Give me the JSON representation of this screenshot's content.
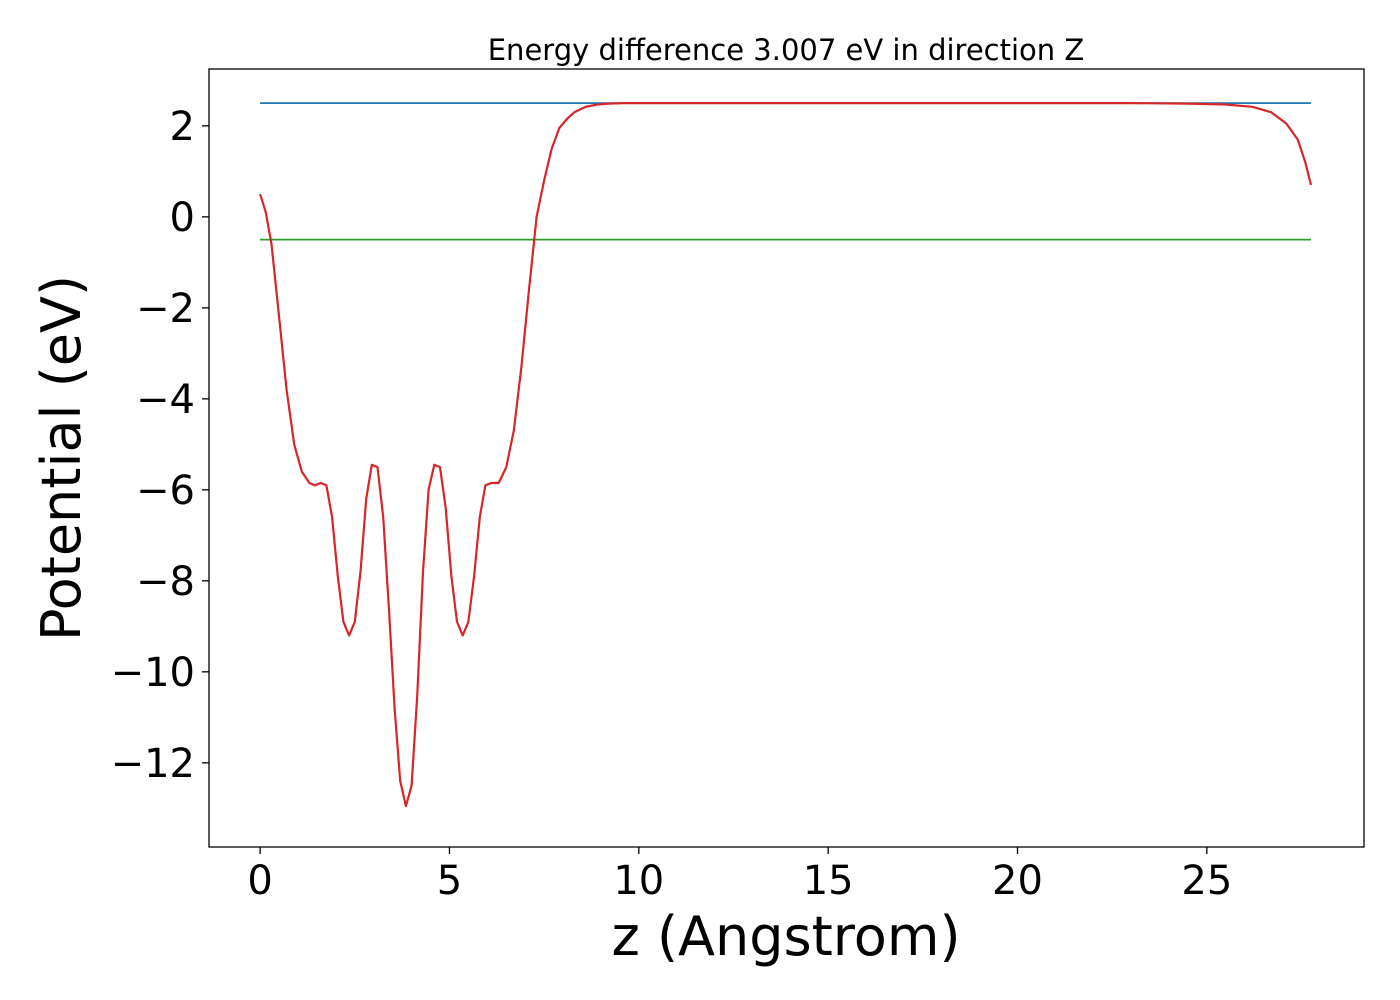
{
  "chart_data": {
    "type": "line",
    "title": "Energy difference 3.007 eV in direction Z",
    "xlabel": "z (Angstrom)",
    "ylabel": "Potential (eV)",
    "xlim": [
      -1.35,
      29.15
    ],
    "ylim": [
      -13.85,
      3.25
    ],
    "xticks": [
      0,
      5,
      10,
      15,
      20,
      25
    ],
    "xtick_labels": [
      "0",
      "5",
      "10",
      "15",
      20,
      "25"
    ],
    "yticks": [
      2,
      0,
      -2,
      -4,
      -6,
      -8,
      -10,
      -12
    ],
    "ytick_labels": [
      "2",
      "0",
      "−2",
      "−4",
      "−6",
      "−8",
      "−10",
      "−12"
    ],
    "grid": false,
    "legend": "none",
    "series": [
      {
        "color": "#1f77b4",
        "x": [
          0,
          27.75
        ],
        "y": [
          2.5,
          2.5
        ]
      },
      {
        "color": "#2ca02c",
        "x": [
          0,
          27.75
        ],
        "y": [
          -0.5,
          -0.5
        ]
      },
      {
        "color": "#d62728",
        "x": [
          0,
          0.15,
          0.3,
          0.5,
          0.7,
          0.9,
          1.1,
          1.3,
          1.45,
          1.6,
          1.75,
          1.9,
          2.05,
          2.2,
          2.35,
          2.5,
          2.65,
          2.8,
          2.95,
          3.1,
          3.25,
          3.4,
          3.55,
          3.7,
          3.85,
          4.0,
          4.15,
          4.3,
          4.45,
          4.6,
          4.75,
          4.9,
          5.05,
          5.2,
          5.35,
          5.5,
          5.65,
          5.8,
          5.95,
          6.1,
          6.3,
          6.5,
          6.7,
          6.9,
          7.1,
          7.3,
          7.5,
          7.7,
          7.9,
          8.1,
          8.3,
          8.6,
          8.9,
          9.2,
          9.6,
          10.0,
          10.5,
          11.0,
          12.0,
          14.0,
          17.0,
          20.0,
          23.0,
          24.5,
          25.5,
          26.2,
          26.7,
          27.1,
          27.4,
          27.6,
          27.75
        ],
        "y": [
          0.5,
          0.1,
          -0.6,
          -2.2,
          -3.8,
          -5.0,
          -5.6,
          -5.85,
          -5.9,
          -5.85,
          -5.9,
          -6.6,
          -7.9,
          -8.9,
          -9.2,
          -8.9,
          -7.8,
          -6.2,
          -5.45,
          -5.5,
          -6.6,
          -8.6,
          -10.8,
          -12.4,
          -12.95,
          -12.5,
          -10.5,
          -7.8,
          -6.0,
          -5.45,
          -5.5,
          -6.4,
          -7.9,
          -8.9,
          -9.2,
          -8.9,
          -7.9,
          -6.6,
          -5.9,
          -5.85,
          -5.85,
          -5.5,
          -4.7,
          -3.3,
          -1.6,
          0.0,
          0.8,
          1.5,
          1.95,
          2.15,
          2.3,
          2.42,
          2.47,
          2.49,
          2.5,
          2.5,
          2.5,
          2.5,
          2.5,
          2.5,
          2.5,
          2.5,
          2.5,
          2.49,
          2.47,
          2.42,
          2.3,
          2.05,
          1.7,
          1.2,
          0.7
        ]
      }
    ]
  }
}
